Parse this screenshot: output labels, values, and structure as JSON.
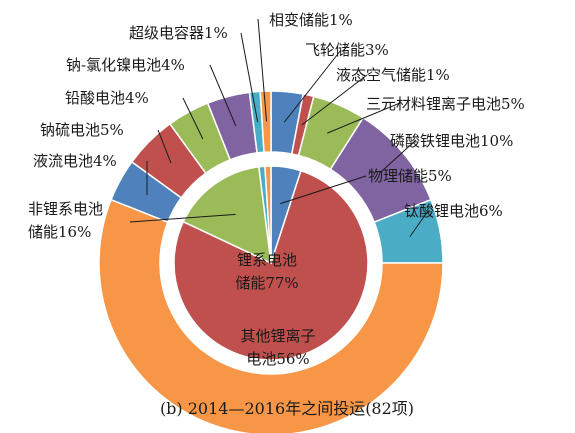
{
  "chart_data": {
    "type": "pie",
    "caption": "(b) 2014—2016年之间投运(82项)",
    "inner": [
      {
        "label": "物理储能5%",
        "value": 5,
        "color": "#4f81bd"
      },
      {
        "label_lines": [
          "锂系电池",
          "储能77%"
        ],
        "value": 77,
        "color": "#c0504d"
      },
      {
        "label_lines": [
          "非锂系电池",
          "储能16%"
        ],
        "value": 16,
        "color": "#9bbb59"
      },
      {
        "label": "超级电容器1%",
        "value": 1,
        "color": "#4bacc6"
      },
      {
        "label": "相变储能1%",
        "value": 1,
        "color": "#f79646"
      }
    ],
    "outer": [
      {
        "label": "飞轮储能3%",
        "value": 3,
        "color": "#4f81bd"
      },
      {
        "label": "液态空气储能1%",
        "value": 1,
        "color": "#c0504d"
      },
      {
        "label": "三元材料锂离子电池5%",
        "value": 5,
        "color": "#9bbb59"
      },
      {
        "label": "磷酸铁锂电池10%",
        "value": 10,
        "color": "#8064a2"
      },
      {
        "label": "钛酸锂电池6%",
        "value": 6,
        "color": "#4bacc6"
      },
      {
        "label_lines": [
          "其他锂离子",
          "电池56%"
        ],
        "value": 56,
        "color": "#f79646"
      },
      {
        "label": "液流电池4%",
        "value": 4,
        "color": "#4f81bd"
      },
      {
        "label": "钠硫电池5%",
        "value": 5,
        "color": "#c0504d"
      },
      {
        "label": "铅酸电池4%",
        "value": 4,
        "color": "#9bbb59"
      },
      {
        "label": "钠-氯化镍电池4%",
        "value": 4,
        "color": "#8064a2"
      },
      {
        "label": "超级电容器1%",
        "value": 1,
        "color": "#4bacc6"
      },
      {
        "label": "相变储能1%",
        "value": 1,
        "color": "#f79646"
      }
    ]
  }
}
